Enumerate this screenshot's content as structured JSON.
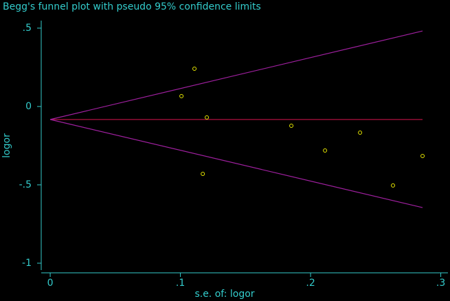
{
  "chart_data": {
    "type": "scatter",
    "title": "Begg's funnel plot with pseudo 95% confidence limits",
    "xlabel": "s.e. of: logor",
    "ylabel": "logor",
    "xlim": [
      -0.0069,
      0.3055
    ],
    "ylim": [
      -1.044,
      0.548
    ],
    "xticks": [
      0,
      {
        "value": 0.1,
        "label": ".1"
      },
      {
        "value": 0.2,
        "label": ".2"
      },
      {
        "value": 0.3,
        "label": ".3"
      }
    ],
    "yticks": [
      {
        "value": 0.5,
        "label": ".5"
      },
      0,
      {
        "value": -0.5,
        "label": "-.5"
      },
      -1
    ],
    "axis_color": "#33cccc",
    "points": {
      "color": "#e6e600",
      "x": [
        0.1008,
        0.1108,
        0.1203,
        0.1172,
        0.1852,
        0.2111,
        0.238,
        0.2633,
        0.286
      ],
      "y": [
        0.066,
        0.241,
        -0.07,
        -0.43,
        -0.123,
        -0.281,
        -0.167,
        -0.504,
        -0.316
      ]
    },
    "lines": [
      {
        "color": "#b01040",
        "x": [
          0,
          0.286
        ],
        "y": [
          -0.083,
          -0.083
        ]
      },
      {
        "color": "#a020a0",
        "x": [
          0,
          0.286
        ],
        "y": [
          -0.083,
          0.482
        ]
      },
      {
        "color": "#a020a0",
        "x": [
          0,
          0.286
        ],
        "y": [
          -0.083,
          -0.645
        ]
      }
    ]
  }
}
